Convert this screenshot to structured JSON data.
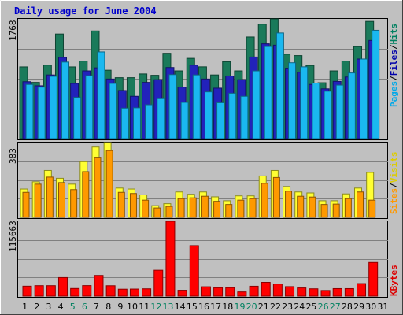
{
  "chart_data": {
    "type": "bar",
    "title": "Daily usage for June 2004",
    "categories": [
      "1",
      "2",
      "3",
      "4",
      "5",
      "6",
      "7",
      "8",
      "9",
      "10",
      "11",
      "12",
      "13",
      "14",
      "15",
      "16",
      "17",
      "18",
      "19",
      "20",
      "21",
      "22",
      "23",
      "24",
      "25",
      "26",
      "27",
      "28",
      "29",
      "30",
      "31"
    ],
    "weekend_days": [
      "5",
      "6",
      "12",
      "13",
      "19",
      "20",
      "26",
      "27"
    ],
    "panels": [
      {
        "name": "top",
        "ymax_label": "1768",
        "ymax": 1768,
        "legend": [
          {
            "text": "Pages",
            "color": "#00a8e8"
          },
          {
            "text": "/",
            "color": "#000000"
          },
          {
            "text": "Files",
            "color": "#0000aa"
          },
          {
            "text": "/",
            "color": "#000000"
          },
          {
            "text": "Hits",
            "color": "#008060"
          }
        ],
        "series": [
          {
            "name": "Hits",
            "color": "#1a7a5a",
            "values": [
              1059,
              830,
              1085,
              1545,
              1059,
              1145,
              1590,
              1010,
              900,
              900,
              955,
              935,
              1260,
              1000,
              1185,
              1060,
              940,
              1136,
              1000,
              1501,
              1690,
              1768,
              1246,
              1226,
              1080,
              825,
              1000,
              1145,
              1359,
              1731,
              0
            ]
          },
          {
            "name": "Files",
            "color": "#2222bb",
            "values": [
              840,
              780,
              940,
              1200,
              815,
              1000,
              1045,
              880,
              710,
              625,
              830,
              870,
              1050,
              760,
              1085,
              880,
              745,
              925,
              870,
              1205,
              1400,
              1380,
              1040,
              980,
              800,
              735,
              845,
              910,
              1175,
              1450,
              0
            ]
          },
          {
            "name": "Pages",
            "color": "#1ab8f0",
            "values": [
              800,
              760,
              920,
              1130,
              610,
              930,
              1280,
              815,
              450,
              455,
              500,
              590,
              945,
              535,
              940,
              690,
              530,
              670,
              625,
              1000,
              1360,
              1560,
              1120,
              1060,
              820,
              700,
              790,
              970,
              1175,
              1600,
              0
            ]
          }
        ]
      },
      {
        "name": "middle",
        "ymax_label": "383",
        "ymax": 383,
        "legend": [
          {
            "text": "Sites",
            "color": "#ff9900"
          },
          {
            "text": "/",
            "color": "#000000"
          },
          {
            "text": "Visits",
            "color": "#ddcc00"
          }
        ],
        "series": [
          {
            "name": "Visits",
            "color": "#ffff33",
            "values": [
              145,
              182,
              240,
              200,
              170,
              285,
              360,
              383,
              150,
              145,
              115,
              60,
              70,
              130,
              118,
              130,
              105,
              85,
              110,
              110,
              212,
              240,
              158,
              130,
              125,
              85,
              85,
              120,
              150,
              230,
              0
            ]
          },
          {
            "name": "Sites",
            "color": "#ff9900",
            "values": [
              128,
              170,
              206,
              178,
              142,
              234,
              308,
              342,
              128,
              122,
              88,
              48,
              56,
              96,
              100,
              108,
              82,
              66,
              88,
              96,
              174,
              204,
              134,
              108,
              104,
              66,
              68,
              96,
              130,
              88,
              0
            ]
          }
        ]
      },
      {
        "name": "bottom",
        "ymax_label": "115663",
        "ymax": 115663,
        "legend": [
          {
            "text": "KBytes",
            "color": "#dd0000"
          }
        ],
        "series": [
          {
            "name": "KBytes",
            "color": "#ff0000",
            "values": [
              15400,
              16200,
              16200,
              28700,
              11800,
              16300,
              32000,
              16100,
              10700,
              10900,
              11300,
              40000,
              115663,
              9050,
              78000,
              14500,
              13000,
              13100,
              6500,
              15300,
              21300,
              18700,
              14700,
              12700,
              11300,
              8700,
              11600,
              11600,
              19400,
              52000,
              0
            ]
          }
        ]
      }
    ]
  }
}
